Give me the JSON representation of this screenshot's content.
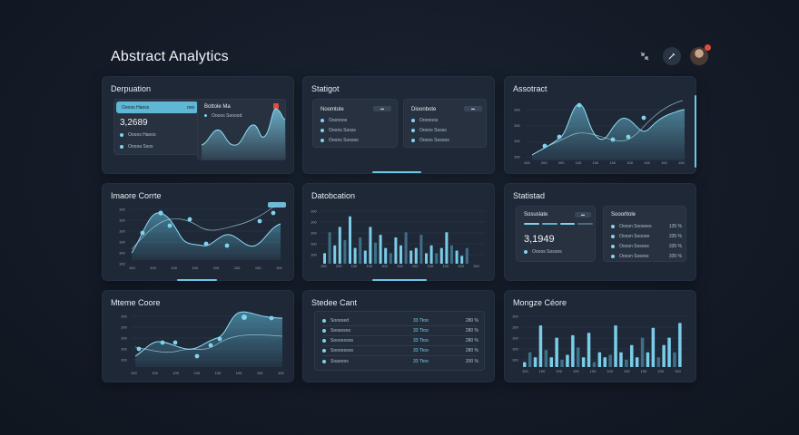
{
  "app": {
    "title": "Abstract Analytics"
  },
  "cards": {
    "c1": {
      "title": "Derpuation",
      "left_title": "Oooos Hanss",
      "left_tag": "ooo",
      "value": "3,2689",
      "left_rows": [
        "Oooos Haoos",
        "Ooooa Ssos"
      ],
      "right_title": "Bottole Ma",
      "right_sub": "Oooos Sooood"
    },
    "c2": {
      "title": "Statigot",
      "left_title": "Noomtole",
      "left_rows": [
        "Ooonoos",
        "Ooons Sosss",
        "Ooons Sosoos"
      ],
      "right_title": "Dioonbote",
      "right_rows": [
        "Ooonoos",
        "Ooons Sosss",
        "Ooons Sosoos"
      ]
    },
    "c3": {
      "title": "Assotract",
      "y_ticks": [
        "100",
        "100",
        "100",
        "100"
      ],
      "x_ticks": [
        "100",
        "200",
        "200",
        "100",
        "100",
        "100",
        "100",
        "100",
        "100",
        "100"
      ]
    },
    "c4": {
      "title": "Imaore Corrte",
      "y_ticks": [
        "100",
        "100",
        "100",
        "100",
        "100",
        "100"
      ],
      "x_ticks": [
        "100",
        "100",
        "100",
        "100",
        "100",
        "100",
        "100",
        "100"
      ]
    },
    "c5": {
      "title": "Datobcation",
      "y_ticks": [
        "100",
        "100",
        "100",
        "100",
        "100"
      ],
      "x_ticks": [
        "100",
        "100",
        "100",
        "100",
        "100",
        "100",
        "100",
        "100",
        "100",
        "100",
        "100"
      ]
    },
    "c6": {
      "title": "Statistad",
      "left_title": "Sosuslate",
      "value": "3,1949",
      "left_row": "Oooos Sosoos",
      "right_title": "Sooorltole",
      "right_rows": [
        {
          "label": "Ooosn Ssoooes",
          "value": "135 %"
        },
        {
          "label": "Ooosn Sooooe",
          "value": "335 %"
        },
        {
          "label": "Ooosn Sosoos",
          "value": "335 %"
        },
        {
          "label": "Ooosn Sssoos",
          "value": "335 %"
        }
      ]
    },
    "c7": {
      "title": "Mteme Coore",
      "y_ticks": [
        "100",
        "100",
        "100",
        "100",
        "100"
      ],
      "x_ticks": [
        "100",
        "100",
        "100",
        "100",
        "100",
        "100",
        "100",
        "100"
      ]
    },
    "c8": {
      "title": "Stedee Cant",
      "rows": [
        {
          "label": "Sooooed",
          "mid": "33 Ttoo",
          "right": "280 %"
        },
        {
          "label": "Soososos",
          "mid": "33 Ttoo",
          "right": "280 %"
        },
        {
          "label": "Soooosoos",
          "mid": "33 Ttoo",
          "right": "280 %"
        },
        {
          "label": "Soooosoos",
          "mid": "33 Ttoo",
          "right": "280 %"
        },
        {
          "label": "Soaooos",
          "mid": "33 Ttoo",
          "right": "200 %"
        }
      ]
    },
    "c9": {
      "title": "Mongze Céore",
      "y_ticks": [
        "100",
        "100",
        "100",
        "100",
        "100"
      ],
      "x_ticks": [
        "100",
        "100",
        "100",
        "100",
        "100",
        "100",
        "100",
        "100",
        "100",
        "100"
      ]
    }
  },
  "colors": {
    "accent": "#7fd3ee",
    "accent_dim": "#3f6f86",
    "card": "#1f2837",
    "bg": "#141b27"
  },
  "icons": [
    "collapse-icon",
    "edit-icon",
    "avatar"
  ]
}
